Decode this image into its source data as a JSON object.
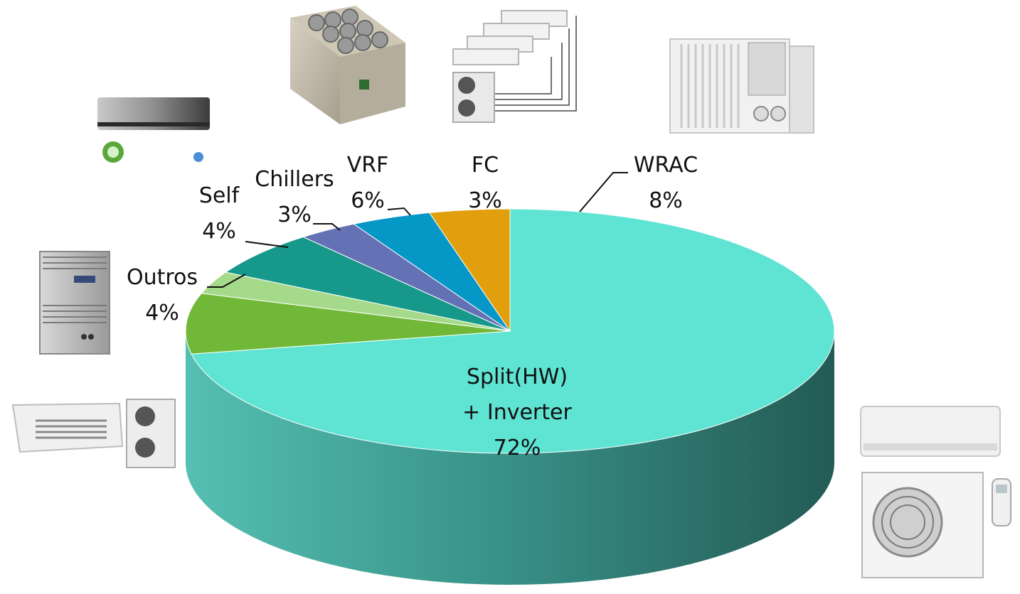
{
  "chart_data": {
    "type": "pie",
    "style": "3d",
    "slices": [
      {
        "label": "Split(HW)\n+ Inverter",
        "value": 72,
        "display": "72%",
        "color": "#5fe3d3"
      },
      {
        "label": "WRAC",
        "value": 8,
        "display": "8%",
        "color": "#71b838"
      },
      {
        "label": "FC",
        "value": 3,
        "display": "3%",
        "color": "#a6da8b"
      },
      {
        "label": "VRF",
        "value": 6,
        "display": "6%",
        "color": "#16988a"
      },
      {
        "label": "Chillers",
        "value": 3,
        "display": "3%",
        "color": "#6471b4"
      },
      {
        "label": "Self",
        "value": 4,
        "display": "4%",
        "color": "#0597c6"
      },
      {
        "label": "Outros",
        "value": 4,
        "display": "4%",
        "color": "#e19f0e"
      }
    ]
  },
  "icons": [
    "wall-split-ac-icon",
    "rooftop-chiller-icon",
    "vrf-system-icon",
    "window-ac-icon",
    "self-contained-unit-icon",
    "cassette-split-ac-icon",
    "split-ac-with-remote-icon"
  ]
}
